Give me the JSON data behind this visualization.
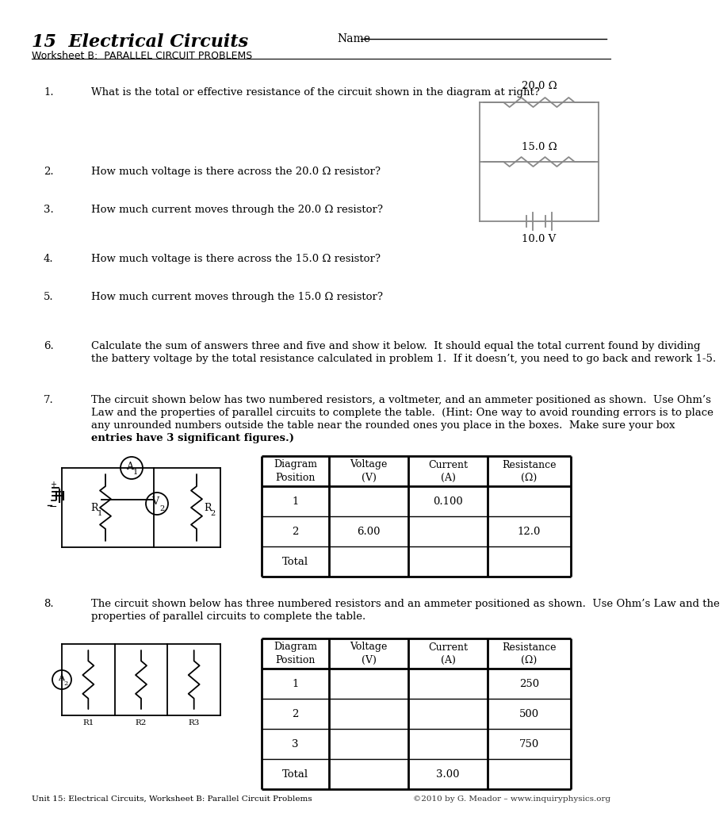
{
  "title": "15  Electrical Circuits",
  "subtitle": "Worksheet B:  PARALLEL CIRCUIT PROBLEMS",
  "name_label": "Name",
  "background": "#ffffff",
  "q1": "What is the total or effective resistance of the circuit shown in the diagram at right?",
  "q2": "How much voltage is there across the 20.0 Ω resistor?",
  "q3": "How much current moves through the 20.0 Ω resistor?",
  "q4": "How much voltage is there across the 15.0 Ω resistor?",
  "q5": "How much current moves through the 15.0 Ω resistor?",
  "q6_line1": "Calculate the sum of answers three and five and show it below.  It should equal the total current found by dividing",
  "q6_line2": "the battery voltage by the total resistance calculated in problem 1.  If it doesn’t, you need to go back and rework 1-5.",
  "q7_line1": "The circuit shown below has two numbered resistors, a voltmeter, and an ammeter positioned as shown.  Use Ohm’s",
  "q7_line2": "Law and the properties of parallel circuits to complete the table.  (Hint: One way to avoid rounding errors is to place",
  "q7_line3": "any unrounded numbers outside the table near the rounded ones you place in the boxes.  Make sure your box",
  "q7_line4_normal": "",
  "q7_line4_bold": "entries have 3 significant figures.)",
  "q8_line1": "The circuit shown below has three numbered resistors and an ammeter positioned as shown.  Use Ohm’s Law and the",
  "q8_line2": "properties of parallel circuits to complete the table.",
  "circuit1_r1": "20.0 Ω",
  "circuit1_r2": "15.0 Ω",
  "circuit1_v": "10.0 V",
  "table7_headers": [
    "Diagram\nPosition",
    "Voltage\n(V)",
    "Current\n(A)",
    "Resistance\n(Ω)"
  ],
  "table7_rows": [
    [
      "1",
      "",
      "0.100",
      ""
    ],
    [
      "2",
      "6.00",
      "",
      "12.0"
    ],
    [
      "Total",
      "",
      "",
      ""
    ]
  ],
  "table8_headers": [
    "Diagram\nPosition",
    "Voltage\n(V)",
    "Current\n(A)",
    "Resistance\n(Ω)"
  ],
  "table8_rows": [
    [
      "1",
      "",
      "",
      "250"
    ],
    [
      "2",
      "",
      "",
      "500"
    ],
    [
      "3",
      "",
      "",
      "750"
    ],
    [
      "Total",
      "",
      "3.00",
      ""
    ]
  ],
  "footer_left": "Unit 15: Electrical Circuits, Worksheet B: Parallel Circuit Problems",
  "footer_right": "©2010 by G. Meador – www.inquiryphysics.org"
}
